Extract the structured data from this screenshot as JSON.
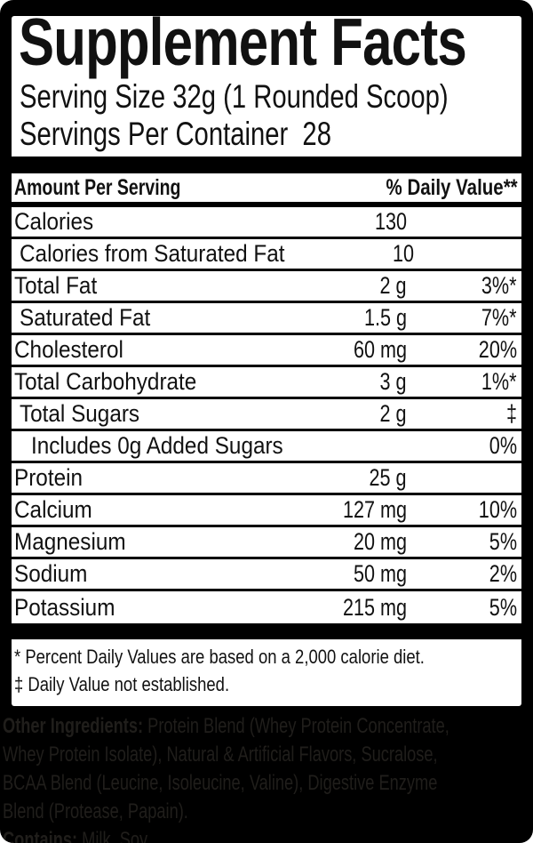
{
  "header": {
    "title": "Supplement Facts",
    "serving_size": "Serving Size 32g (1 Rounded Scoop)",
    "servings_per_container": "Servings Per Container  28"
  },
  "table": {
    "amount_header": "Amount Per Serving",
    "dv_header": "% Daily Value**",
    "rows": [
      {
        "label": "Calories",
        "amount": "130",
        "dv": ""
      },
      {
        "label": "Calories from Saturated Fat",
        "amount": "10",
        "dv": ""
      },
      {
        "label": "Total Fat",
        "amount": "2 g",
        "dv": "3%*"
      },
      {
        "label": "Saturated Fat",
        "amount": "1.5 g",
        "dv": "7%*"
      },
      {
        "label": "Cholesterol",
        "amount": "60 mg",
        "dv": "20%"
      },
      {
        "label": "Total Carbohydrate",
        "amount": "3 g",
        "dv": "1%*"
      },
      {
        "label": "Total Sugars",
        "amount": "2 g",
        "dv": "‡"
      },
      {
        "label": "Includes 0g Added Sugars",
        "amount": "",
        "dv": "0%"
      },
      {
        "label": "Protein",
        "amount": "25 g",
        "dv": ""
      },
      {
        "label": "Calcium",
        "amount": "127 mg",
        "dv": "10%"
      },
      {
        "label": "Magnesium",
        "amount": "20 mg",
        "dv": "5%"
      },
      {
        "label": "Sodium",
        "amount": "50 mg",
        "dv": "2%"
      },
      {
        "label": "Potassium",
        "amount": "215 mg",
        "dv": "5%"
      }
    ]
  },
  "footnotes": {
    "daily_values": "* Percent Daily Values are based on a 2,000 calorie diet.",
    "not_established": "‡ Daily Value not established."
  },
  "ingredients": {
    "lines": [
      {
        "bold": "Other Ingredients:",
        "text": " Protein Blend (Whey Protein Concentrate,"
      },
      {
        "bold": "",
        "text": "Whey Protein Isolate), Natural & Artificial Flavors, Sucralose,"
      },
      {
        "bold": "",
        "text": "BCAA Blend (Leucine, Isoleucine, Valine), Digestive Enzyme"
      },
      {
        "bold": "",
        "text": "Blend (Protease, Papain)."
      },
      {
        "bold": "Contains:",
        "text": " Milk, Soy."
      }
    ]
  },
  "colors": {
    "label_background": "#000000",
    "panel_background": "#ffffff",
    "panel_text": "#111111",
    "ingredients_text": "#201e1b"
  }
}
